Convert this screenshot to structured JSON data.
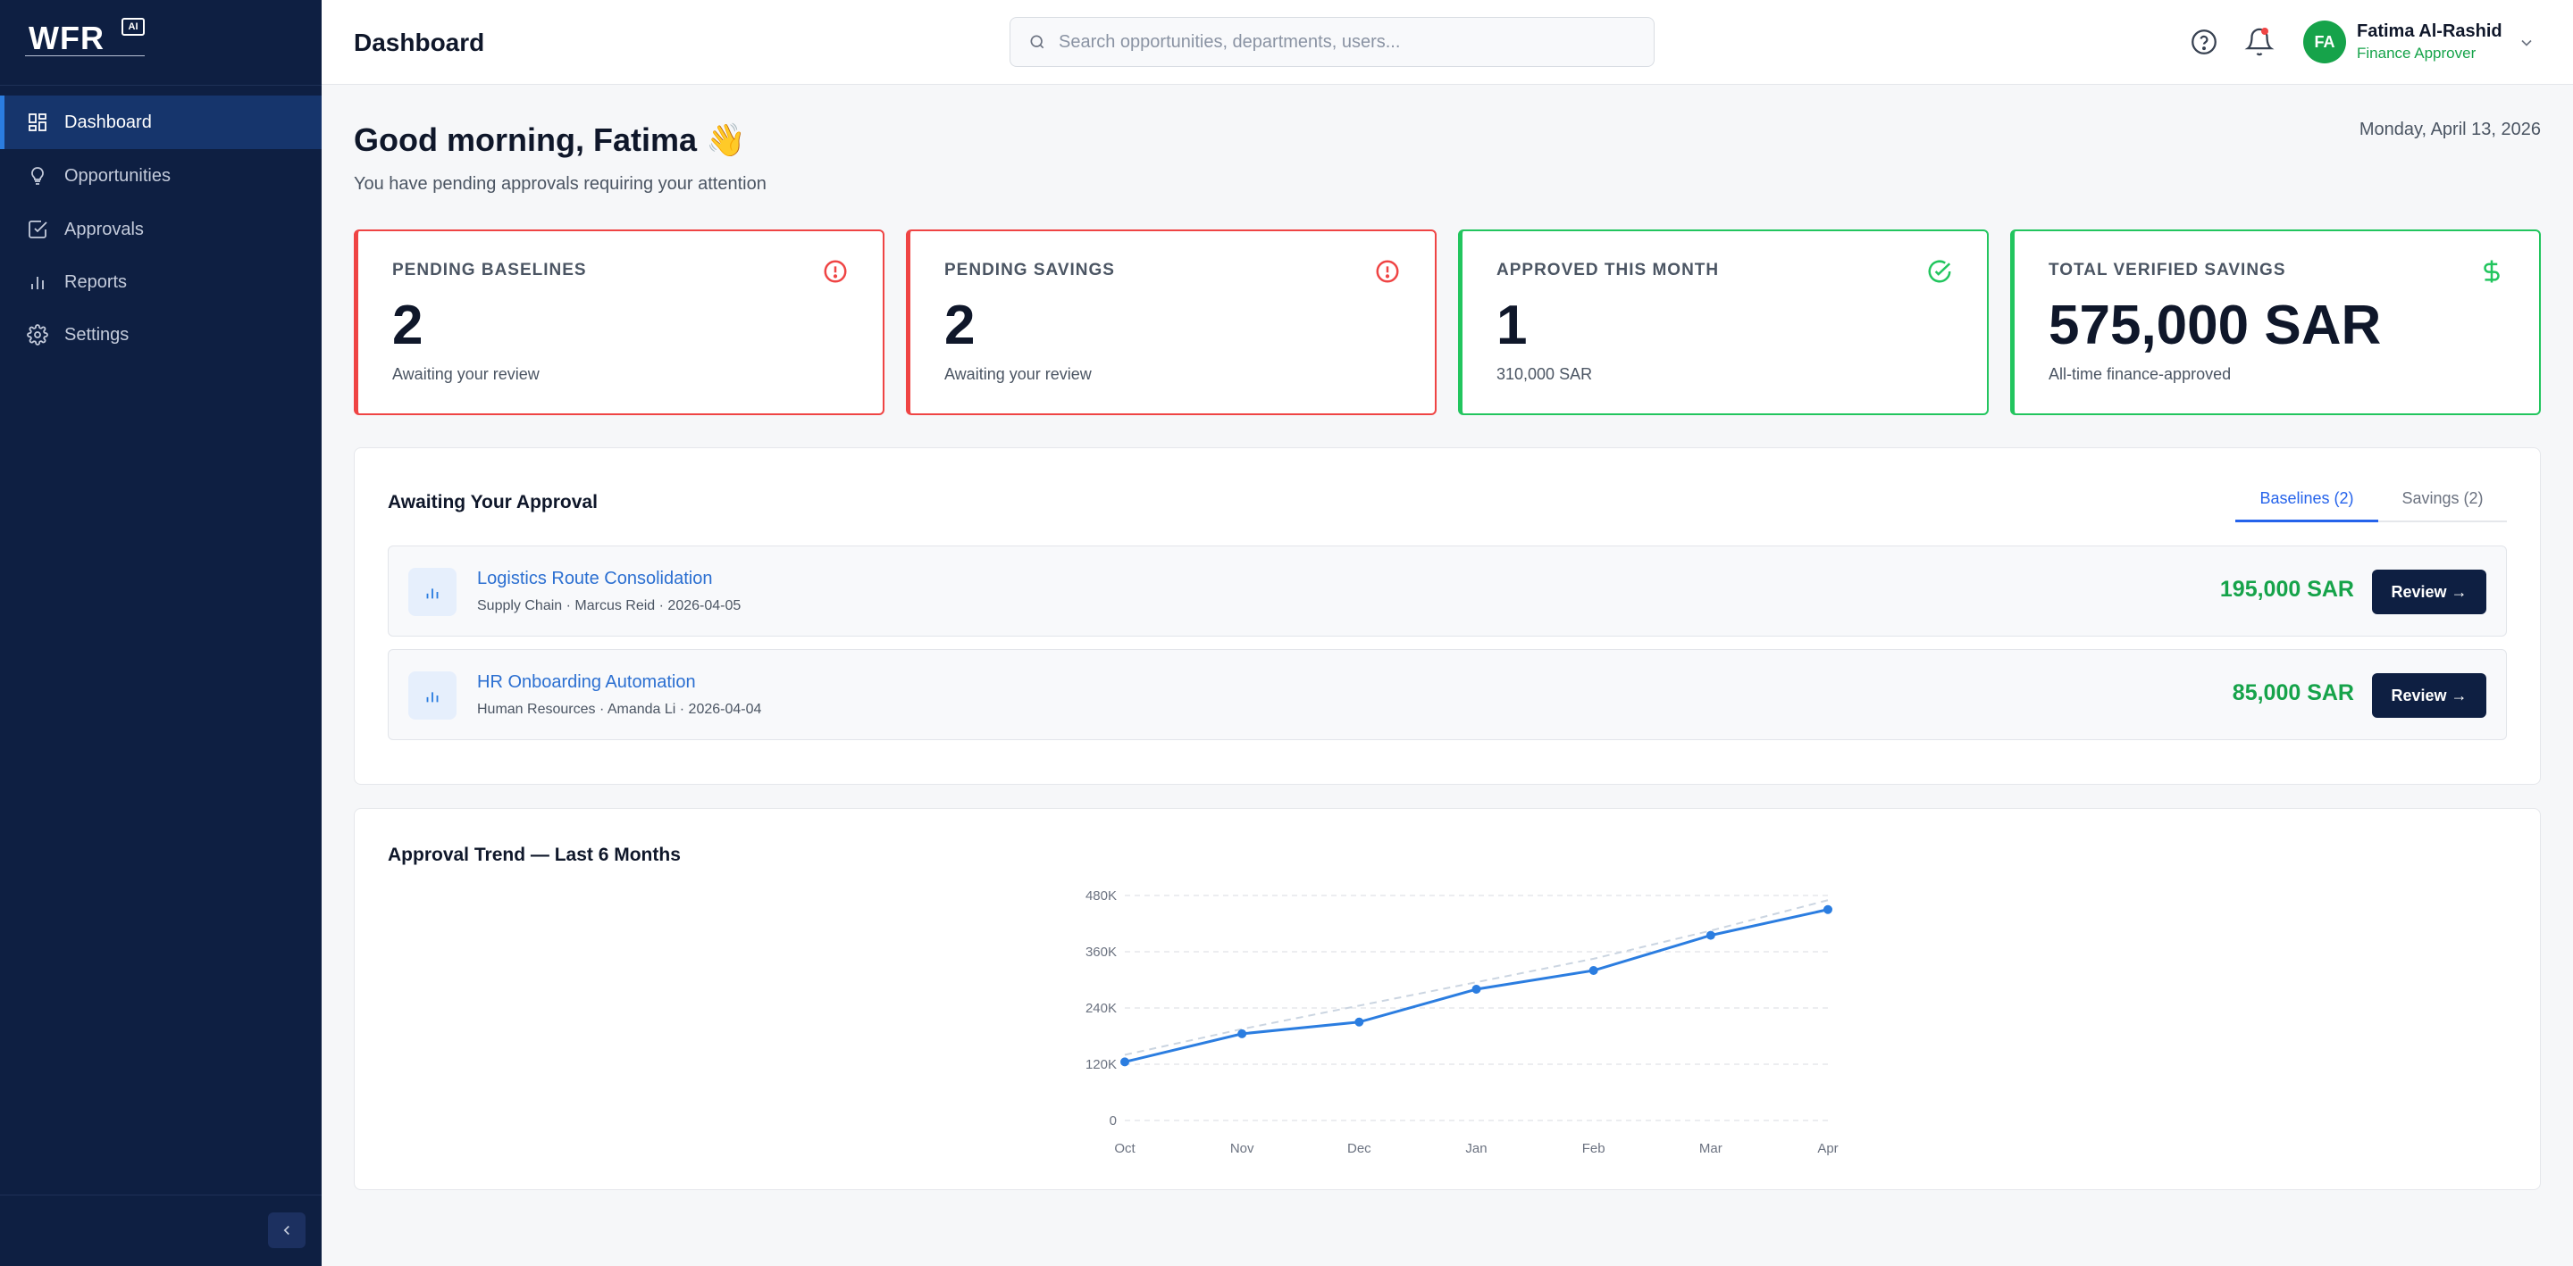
{
  "brand": {
    "logo_text": "WFR",
    "logo_badge": "AI"
  },
  "sidebar": {
    "items": [
      {
        "label": "Dashboard",
        "icon": "dashboard-icon",
        "active": true
      },
      {
        "label": "Opportunities",
        "icon": "lightbulb-icon",
        "active": false
      },
      {
        "label": "Approvals",
        "icon": "check-square-icon",
        "active": false
      },
      {
        "label": "Reports",
        "icon": "bar-chart-icon",
        "active": false
      },
      {
        "label": "Settings",
        "icon": "gear-icon",
        "active": false
      }
    ],
    "collapse_icon": "chevron-left-icon"
  },
  "header": {
    "title": "Dashboard",
    "search_placeholder": "Search opportunities, departments, users...",
    "user": {
      "initials": "FA",
      "name": "Fatima Al-Rashid",
      "role": "Finance Approver"
    }
  },
  "greeting": {
    "title": "Good morning, Fatima 👋",
    "subtitle": "You have pending approvals requiring your attention",
    "date": "Monday, April 13, 2026"
  },
  "cards": [
    {
      "label": "PENDING BASELINES",
      "value": "2",
      "note": "Awaiting your review",
      "icon": "alert-circle-icon",
      "color": "#ef4444"
    },
    {
      "label": "PENDING SAVINGS",
      "value": "2",
      "note": "Awaiting your review",
      "icon": "alert-circle-icon",
      "color": "#ef4444"
    },
    {
      "label": "APPROVED THIS MONTH",
      "value": "1",
      "note": "310,000 SAR",
      "icon": "check-circle-icon",
      "color": "#22c55e"
    },
    {
      "label": "TOTAL VERIFIED SAVINGS",
      "value": "575,000 SAR",
      "note": "All-time finance-approved",
      "icon": "dollar-icon",
      "color": "#22c55e"
    }
  ],
  "approvals": {
    "title": "Awaiting Your Approval",
    "tabs": [
      {
        "label": "Baselines (2)",
        "active": true
      },
      {
        "label": "Savings (2)",
        "active": false
      }
    ],
    "rows": [
      {
        "title": "Logistics Route Consolidation",
        "meta": "Supply Chain · Marcus Reid · 2026-04-05",
        "amount": "195,000 SAR",
        "button": "Review →"
      },
      {
        "title": "HR Onboarding Automation",
        "meta": "Human Resources · Amanda Li · 2026-04-04",
        "amount": "85,000 SAR",
        "button": "Review →"
      }
    ]
  },
  "trend": {
    "title": "Approval Trend — Last 6 Months"
  },
  "chart_data": {
    "type": "line",
    "x": [
      "Oct",
      "Nov",
      "Dec",
      "Jan",
      "Feb",
      "Mar",
      "Apr"
    ],
    "series": [
      {
        "values": [
          125000,
          185000,
          210000,
          280000,
          320000,
          395000,
          450000
        ],
        "color": "#2b7de0",
        "markers": true
      },
      {
        "values": [
          140000,
          195000,
          245000,
          295000,
          345000,
          405000,
          470000
        ],
        "color": "#cbd5e1",
        "dashed": true
      }
    ],
    "y_ticks": [
      "0",
      "120K",
      "240K",
      "360K",
      "480K"
    ],
    "ylim": [
      0,
      480000
    ],
    "grid": true
  }
}
